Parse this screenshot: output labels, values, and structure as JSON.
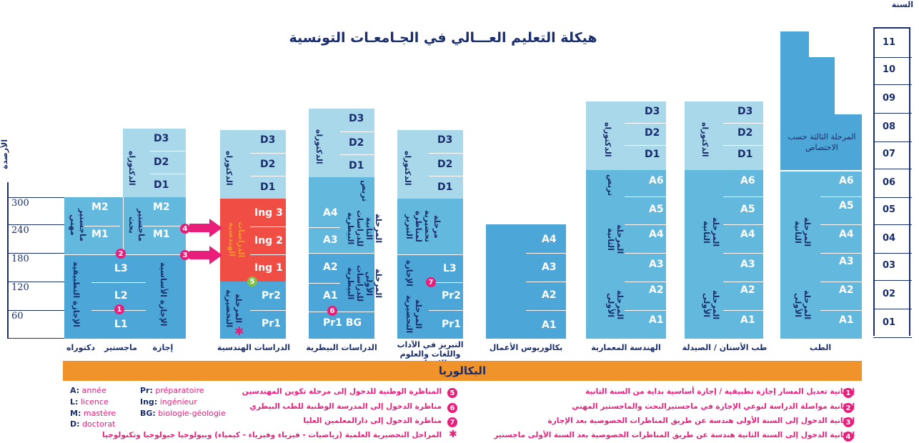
{
  "title": "هيكلة التعليم العـــالي في الجـامعـات التونسية",
  "year_axis_label": "السنة",
  "credit_axis_label": "الأرصدة",
  "years": [
    "11",
    "10",
    "09",
    "08",
    "07",
    "06",
    "05",
    "04",
    "03",
    "02",
    "01"
  ],
  "credits": [
    "300",
    "240",
    "180",
    "120",
    "60"
  ],
  "bac_label": "البكالوريا",
  "columns": {
    "lmd": {
      "cap_doctorat": "دكتوراه",
      "cap_master": "ماجستير",
      "cap_licence": "إجازة",
      "d3": "D3",
      "d2": "D2",
      "d1": "D1",
      "m2a": "M2",
      "m1a": "M1",
      "m2b": "M2",
      "m1b": "M1",
      "l3": "L3",
      "l2": "L2",
      "l1": "L1",
      "doct_v": "الدكتوراه",
      "master_pro_v": "ماجستير مهني",
      "master_rech_v": "ماجستير بحث",
      "lic_app_v": "الإجازة التطبيقية",
      "lic_fond_v": "الإجازة الأساسية"
    },
    "eng": {
      "cap": "الدراسات الهندسية",
      "d3": "D3",
      "d2": "D2",
      "d1": "D1",
      "ing3": "Ing 3",
      "ing2": "Ing 2",
      "ing1": "Ing 1",
      "pr2": "Pr2",
      "pr1": "Pr1",
      "doct_v": "الدكتوراه",
      "eng_v": "الدراسات الهندسية",
      "prep_v": "المرحلة التحضيرية"
    },
    "vet": {
      "cap": "الدراسات البيطرية",
      "d3": "D3",
      "d2": "D2",
      "d1": "D1",
      "a4": "A4",
      "a3": "A3",
      "a2": "A2",
      "a1": "A1",
      "pr1bg": "Pr1 BG",
      "doct_v": "الدكتوراه",
      "tr_v": "تربص",
      "stage2_v": "المرحلة الثانية للدراسات البيطرية",
      "stage1_v": "المرحلة الأولى للدراسات البيطرية"
    },
    "agr": {
      "cap1": "التبريز في الآداب",
      "cap2": "واللغات والعلوم الانسانية",
      "d3": "D3",
      "d2": "D2",
      "d1": "D1",
      "l3": "L3",
      "pr2": "Pr2",
      "pr1": "Pr1",
      "doct_v": "الدكتوراه",
      "prep_agr_v": "مرحلة تحضيرية لمناظرة التبريز",
      "lic_v": "الإجازة",
      "prep_v": "المرحلة التحضيرية"
    },
    "bba": {
      "cap": "بكالوريوس الأعمال",
      "a4": "A4",
      "a3": "A3",
      "a2": "A2",
      "a1": "A1"
    },
    "arch": {
      "cap": "الهندسة المعمارية",
      "d3": "D3",
      "d2": "D2",
      "d1": "D1",
      "a6": "A6",
      "a5": "A5",
      "a4": "A4",
      "a3": "A3",
      "a2": "A2",
      "a1": "A1",
      "doct_v": "الدكتوراه",
      "tr_v": "تربص",
      "stage2_v": "المرحلة الثانية",
      "stage1_v": "المرحلة الأولى"
    },
    "dent": {
      "cap": "طب الأسنان / الصيدلة",
      "d3": "D3",
      "d2": "D2",
      "d1": "D1",
      "a6": "A6",
      "a5": "A5",
      "a4": "A4",
      "a3": "A3",
      "a2": "A2",
      "a1": "A1",
      "doct_v": "الدكتوراه",
      "stage2_v": "المرحلة الثانية",
      "stage1_v": "المرحلة الأولى"
    },
    "med": {
      "cap": "الطب",
      "third": "المرحلة الثالثة حسب الاختصاص",
      "a6": "A6",
      "a5": "A5",
      "a4": "A4",
      "a3": "A3",
      "a2": "A2",
      "a1": "A1",
      "stage2_v": "المرحلة الثانية",
      "stage1_v": "المرحلة الأولى"
    }
  },
  "markers": {
    "m1": "1",
    "m2": "2",
    "m3": "3",
    "m4": "4",
    "m5": "5",
    "m6": "6",
    "m7": "7",
    "star": "✱"
  },
  "legend": {
    "a": "A:",
    "a_t": " année",
    "l": "L:",
    "l_t": " licence",
    "m": "M:",
    "m_t": " mastère",
    "d": "D:",
    "d_t": " doctorat",
    "pr": "Pr:",
    "pr_t": " préparatoire",
    "ing": "Ing:",
    "ing_t": " ingénieur",
    "bg": "BG:",
    "bg_t": " biologie-géologie"
  },
  "notes": {
    "n1": "إمكانية تعديل المسار إجازة تطبيقية / إجازة أساسية بداية من السنة الثانية",
    "n2": "إمكانية مواصلة الدراسة لنوعي الإجازة في ماجستيرالبحث والماجستير المهني",
    "n3": "إمكانية الدخول إلى السنة الأولى هندسة عن طريق المناظرات الخصوصية بعد الإجازة",
    "n4": "إمكانية الدخول إلى السنة الثانية هندسة عن طريق المناظرات الخصوصية بعد السنة الأولى ماجستير",
    "n5": "المناظرة الوطنية للدخول إلى مرحلة تكوين المهندسين",
    "n6": "مناظرة الدخول إلى المدرسة الوطنية للطب البيطري",
    "n7": "مناظرة الدخول إلى دارالمعلمين العليا",
    "n8": "المراحل التحضيرية العلمية (رياضيات - فيزياء وفيزياء - كيمياء) وبيولوجيا جيولوجيا وتكنولوجيا"
  },
  "colors": {
    "light": "#a8d8ea",
    "mid": "#63b8de",
    "blue": "#4da6d8",
    "red": "#f04e45",
    "orange": "#f0932a",
    "pink": "#e91e7b",
    "navy": "#1a2e6e"
  }
}
